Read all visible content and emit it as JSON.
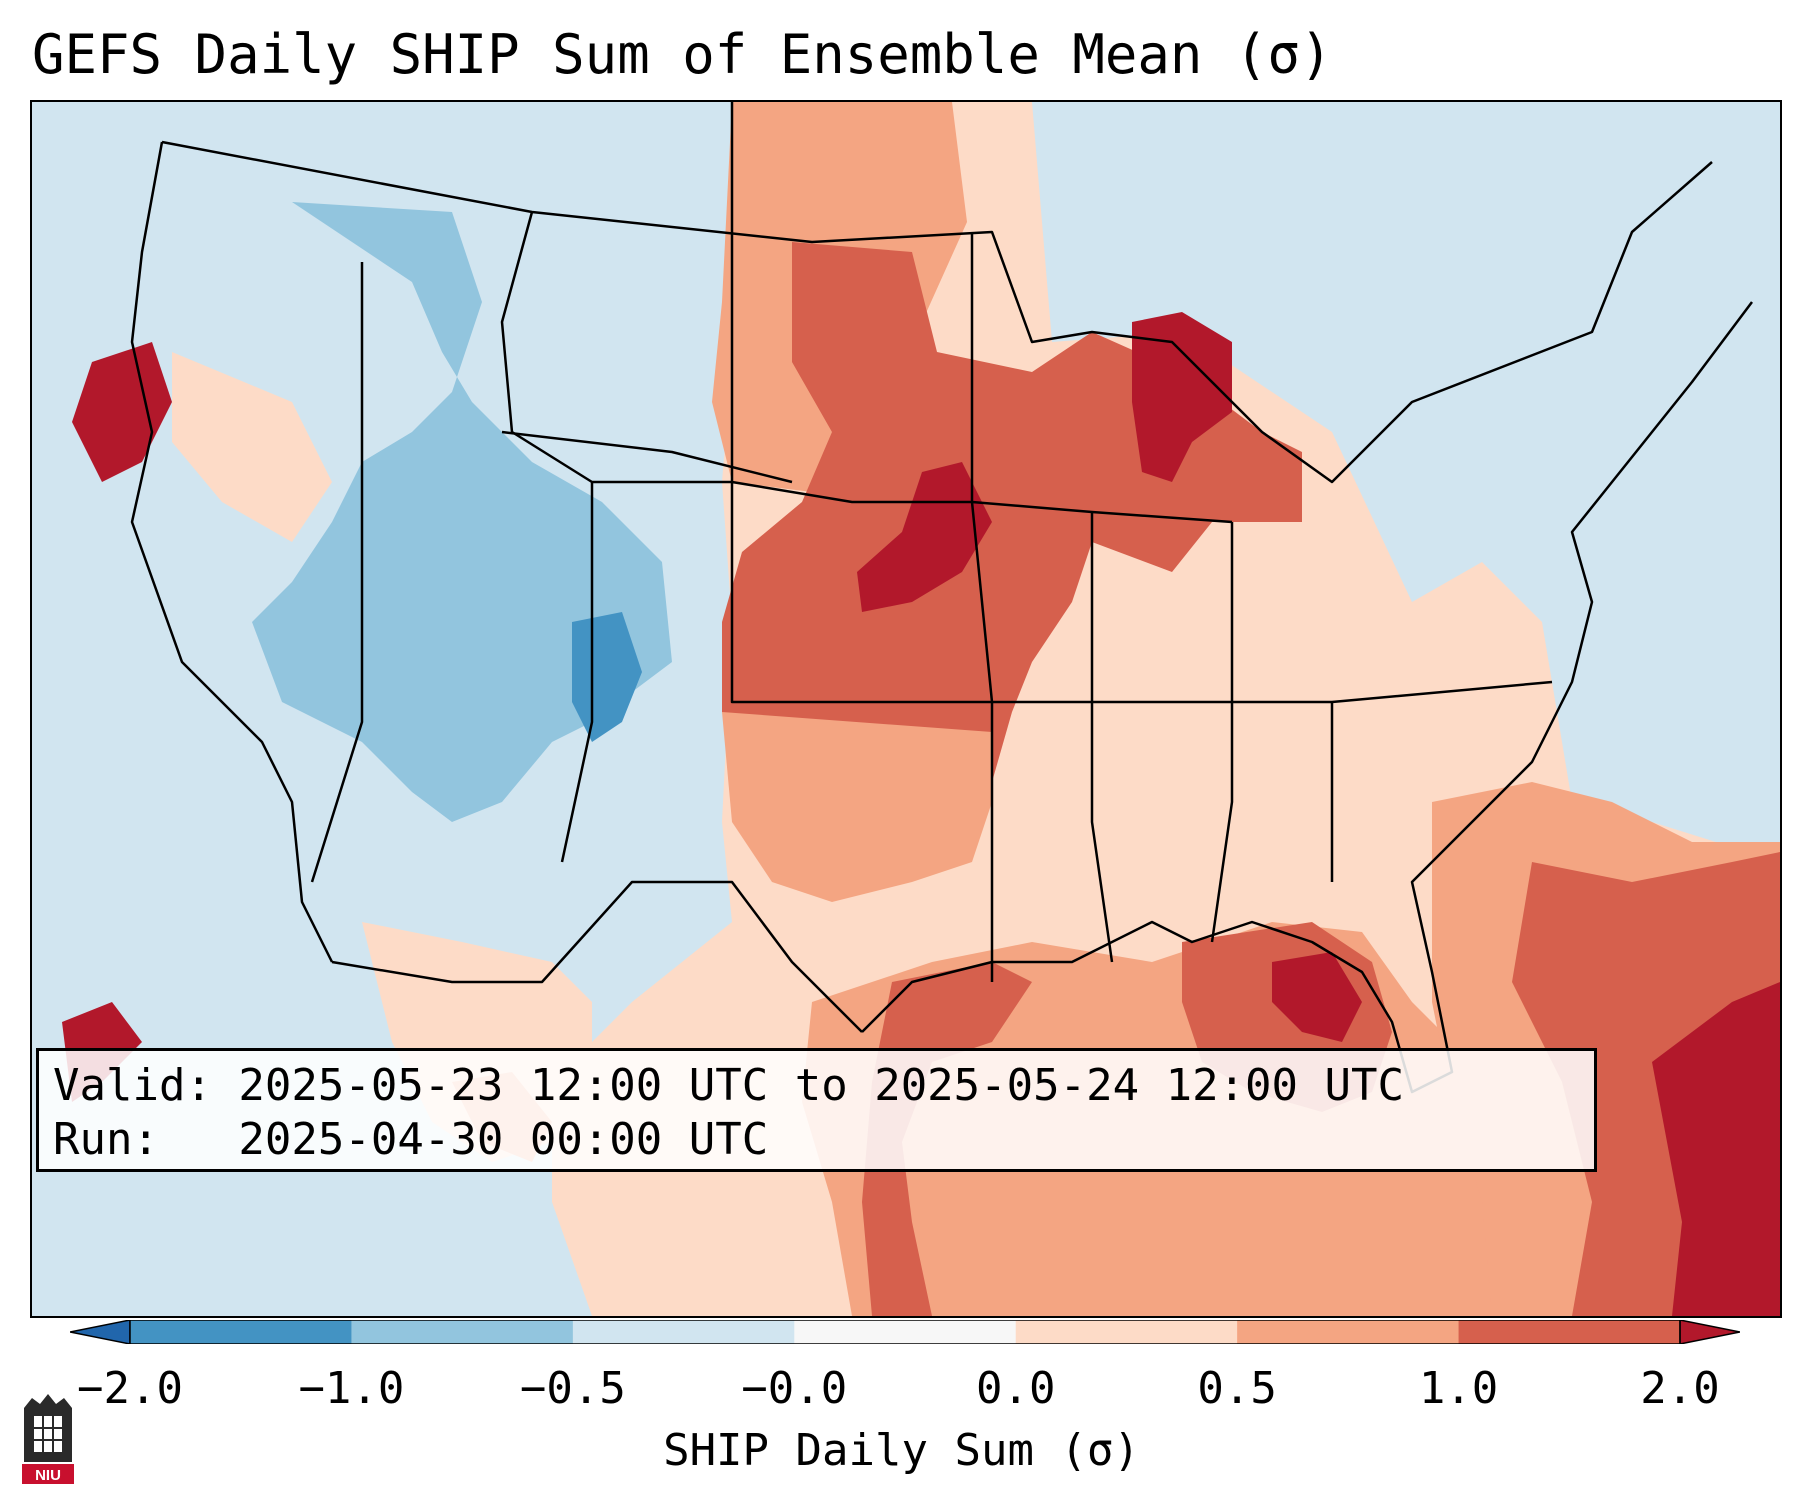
{
  "title": "GEFS Daily SHIP Sum of Ensemble Mean (σ)",
  "info": {
    "valid_line": "Valid: 2025-05-23 12:00 UTC to 2025-05-24 12:00 UTC",
    "run_line": "Run:   2025-04-30 00:00 UTC"
  },
  "colorbar": {
    "label": "SHIP Daily Sum (σ)",
    "ticks": [
      "−2.0",
      "−1.0",
      "−0.5",
      "−0.0",
      "0.0",
      "0.5",
      "1.0",
      "2.0"
    ],
    "bin_colors": [
      "#4393c3",
      "#92c5de",
      "#d1e5f0",
      "#f7f7f7",
      "#fddbc7",
      "#f4a582",
      "#d6604d"
    ],
    "extend_low_color": "#2166ac",
    "extend_high_color": "#b2182b"
  },
  "map": {
    "region": "Contiguous United States and surroundings",
    "background_color": "#d1e5f0",
    "anomaly_regions": [
      {
        "name": "Great Plains / Upper Midwest positive anomaly",
        "category": "1.0 to 2.0"
      },
      {
        "name": "Gulf of Mexico positive anomaly",
        "category": "0.5 to 1.0"
      },
      {
        "name": "Western Atlantic positive anomaly",
        "category": "1.0 to 2.0"
      },
      {
        "name": "Southern Rockies negative anomaly",
        "category": "-1.0 to -0.5"
      }
    ]
  },
  "logo": {
    "text": "NIU"
  }
}
